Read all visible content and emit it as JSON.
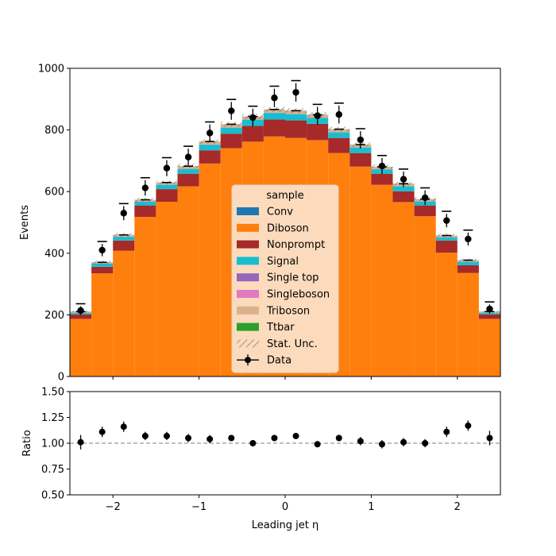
{
  "chart_data": [
    {
      "type": "bar",
      "stacked": true,
      "ylabel": "Events",
      "xlabel": "",
      "xlim": [
        -2.5,
        2.5
      ],
      "ylim": [
        0,
        1000
      ],
      "xticks": [
        -2,
        -1,
        0,
        1,
        2
      ],
      "xtick_labels": [
        "",
        "",
        "",
        "",
        ""
      ],
      "yticks": [
        0,
        200,
        400,
        600,
        800,
        1000
      ],
      "ytick_labels": [
        "0",
        "200",
        "400",
        "600",
        "800",
        "1000"
      ],
      "bin_edges": [
        -2.5,
        -2.25,
        -2.0,
        -1.75,
        -1.5,
        -1.25,
        -1.0,
        -0.75,
        -0.5,
        -0.25,
        0.0,
        0.25,
        0.5,
        0.75,
        1.0,
        1.25,
        1.5,
        1.75,
        2.0,
        2.25,
        2.5
      ],
      "legend": {
        "title": "sample",
        "placement": "center",
        "entries": [
          "Conv",
          "Diboson",
          "Nonprompt",
          "Signal",
          "Single top",
          "Singleboson",
          "Triboson",
          "Ttbar",
          "Stat. Unc.",
          "Data"
        ]
      },
      "series": [
        {
          "name": "Conv",
          "color": "#1f77b4",
          "values": [
            1,
            1,
            1,
            1,
            1,
            1,
            1,
            1,
            1,
            1,
            1,
            1,
            1,
            1,
            1,
            1,
            1,
            1,
            1,
            1
          ]
        },
        {
          "name": "Diboson",
          "color": "#ff7f0e",
          "values": [
            186,
            334,
            407,
            517,
            566,
            616,
            690,
            740,
            761,
            778,
            773,
            766,
            724,
            680,
            621,
            565,
            519,
            401,
            335,
            186
          ]
        },
        {
          "name": "Nonprompt",
          "color": "#a62a2a",
          "values": [
            14,
            21,
            33,
            37,
            41,
            41,
            43,
            47,
            51,
            55,
            57,
            53,
            49,
            44,
            36,
            35,
            35,
            39,
            25,
            14
          ]
        },
        {
          "name": "Signal",
          "color": "#17becf",
          "values": [
            5,
            10,
            12,
            12,
            14,
            15,
            18,
            19,
            20,
            21,
            20,
            19,
            18,
            18,
            14,
            16,
            13,
            10,
            11,
            5
          ]
        },
        {
          "name": "Single top",
          "color": "#9467bd",
          "values": [
            0.5,
            0.5,
            0.5,
            0.5,
            0.5,
            0.5,
            0.5,
            0.5,
            0.5,
            0.5,
            0.5,
            0.5,
            0.5,
            0.5,
            0.5,
            0.5,
            0.5,
            0.5,
            0.5,
            0.5
          ]
        },
        {
          "name": "Singleboson",
          "color": "#e377c2",
          "values": [
            0.5,
            0.5,
            0.5,
            0.5,
            0.5,
            0.5,
            0.5,
            0.5,
            0.5,
            0.5,
            0.5,
            0.5,
            0.5,
            0.5,
            0.5,
            0.5,
            0.5,
            0.5,
            0.5,
            0.5
          ]
        },
        {
          "name": "Triboson",
          "color": "#d9b38c",
          "values": [
            3,
            3,
            5,
            5,
            6,
            8,
            9,
            10,
            9,
            10,
            10,
            9,
            9,
            8,
            7,
            7,
            6,
            5,
            4,
            3
          ]
        },
        {
          "name": "Ttbar",
          "color": "#2ca02c",
          "values": [
            0.5,
            0.5,
            0.5,
            0.5,
            0.5,
            0.5,
            0.5,
            0.5,
            0.5,
            0.5,
            0.5,
            0.5,
            0.5,
            0.5,
            0.5,
            0.5,
            0.5,
            0.5,
            0.5,
            0.5
          ]
        }
      ],
      "stat_unc": [
        3,
        5,
        6,
        6,
        6,
        7,
        7,
        8,
        8,
        8,
        8,
        8,
        8,
        7,
        7,
        6,
        6,
        6,
        5,
        3
      ],
      "data": {
        "name": "Data",
        "color": "#000000",
        "x": [
          -2.375,
          -2.125,
          -1.875,
          -1.625,
          -1.375,
          -1.125,
          -0.875,
          -0.625,
          -0.375,
          -0.125,
          0.125,
          0.375,
          0.625,
          0.875,
          1.125,
          1.375,
          1.625,
          1.875,
          2.125,
          2.375
        ],
        "y": [
          214,
          410,
          530,
          612,
          676,
          712,
          790,
          862,
          840,
          904,
          922,
          846,
          850,
          768,
          683,
          640,
          580,
          506,
          446,
          219
        ],
        "yerr": [
          14,
          20,
          23,
          25,
          26,
          27,
          28,
          29,
          29,
          30,
          30,
          29,
          29,
          28,
          26,
          25,
          24,
          22,
          21,
          15
        ]
      }
    },
    {
      "type": "scatter",
      "xlabel": "Leading jet  η",
      "ylabel": "Ratio",
      "xlim": [
        -2.5,
        2.5
      ],
      "ylim": [
        0.5,
        1.5
      ],
      "xticks": [
        -2,
        -1,
        0,
        1,
        2
      ],
      "xtick_labels": [
        "−2",
        "−1",
        "0",
        "1",
        "2"
      ],
      "yticks": [
        0.5,
        0.75,
        1.0,
        1.25,
        1.5
      ],
      "ytick_labels": [
        "0.50",
        "0.75",
        "1.00",
        "1.25",
        "1.50"
      ],
      "reference_line": 1.0,
      "x": [
        -2.375,
        -2.125,
        -1.875,
        -1.625,
        -1.375,
        -1.125,
        -0.875,
        -0.625,
        -0.375,
        -0.125,
        0.125,
        0.375,
        0.625,
        0.875,
        1.125,
        1.375,
        1.625,
        1.875,
        2.125,
        2.375
      ],
      "y": [
        1.01,
        1.11,
        1.16,
        1.07,
        1.07,
        1.05,
        1.04,
        1.05,
        1.0,
        1.05,
        1.07,
        0.99,
        1.05,
        1.02,
        0.99,
        1.01,
        1.0,
        1.11,
        1.17,
        1.05
      ],
      "yerr": [
        0.07,
        0.05,
        0.05,
        0.04,
        0.04,
        0.04,
        0.04,
        0.03,
        0.03,
        0.03,
        0.03,
        0.03,
        0.03,
        0.04,
        0.04,
        0.04,
        0.04,
        0.05,
        0.05,
        0.07
      ]
    }
  ]
}
